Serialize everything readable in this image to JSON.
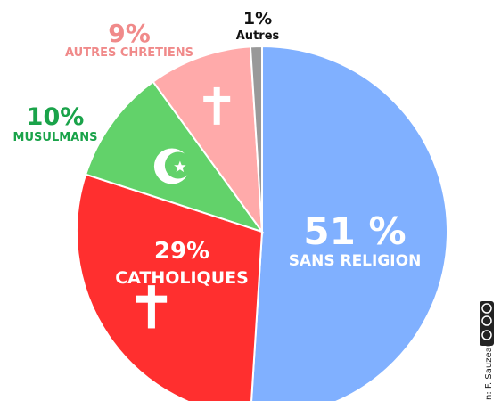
{
  "chart_data": {
    "type": "pie",
    "title": "",
    "slices": [
      {
        "label": "SANS RELIGION",
        "value": 51,
        "pct_label": "51 %",
        "color": "#80b0ff",
        "icon": "none"
      },
      {
        "label": "CATHOLIQUES",
        "value": 29,
        "pct_label": "29%",
        "color": "#ff2f2f",
        "icon": "cross-icon"
      },
      {
        "label": "MUSULMANS",
        "value": 10,
        "pct_label": "10%",
        "color": "#62d26a",
        "icon": "crescent-star-icon"
      },
      {
        "label": "AUTRES CHRETIENS",
        "value": 9,
        "pct_label": "9%",
        "color": "#ffaaaa",
        "icon": "cross-icon"
      },
      {
        "label": "Autres",
        "value": 1,
        "pct_label": "1%",
        "color": "#999999",
        "icon": "none"
      }
    ],
    "label_colors": {
      "MUSULMANS": "#1aa34a",
      "AUTRES CHRETIENS": "#f08a8a",
      "Autres": "#111111"
    }
  },
  "credit": {
    "text": "n: F. Sauzeau",
    "license_icon": "creative-commons-icon"
  }
}
